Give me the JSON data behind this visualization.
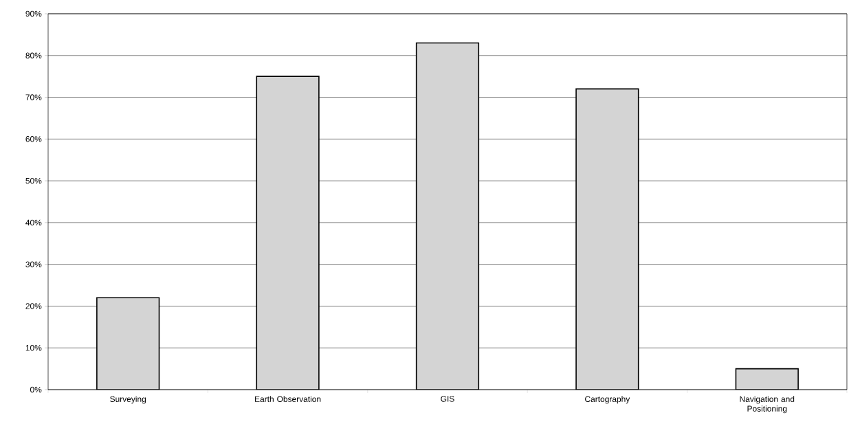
{
  "chart_data": {
    "type": "bar",
    "categories": [
      "Surveying",
      "Earth Observation",
      "GIS",
      "Cartography",
      "Navigation and Positioning"
    ],
    "values": [
      22,
      75,
      83,
      72,
      5
    ],
    "color": "#d4d4d4",
    "ylim": [
      0,
      90
    ],
    "yticks": [
      {
        "value": 0,
        "label": "0%"
      },
      {
        "value": 10,
        "label": "10%"
      },
      {
        "value": 20,
        "label": "20%"
      },
      {
        "value": 30,
        "label": "30%"
      },
      {
        "value": 40,
        "label": "40%"
      },
      {
        "value": 50,
        "label": "50%"
      },
      {
        "value": 60,
        "label": "60%"
      },
      {
        "value": 70,
        "label": "70%"
      },
      {
        "value": 80,
        "label": "80%"
      },
      {
        "value": 90,
        "label": "90%"
      }
    ],
    "grid": "y"
  }
}
